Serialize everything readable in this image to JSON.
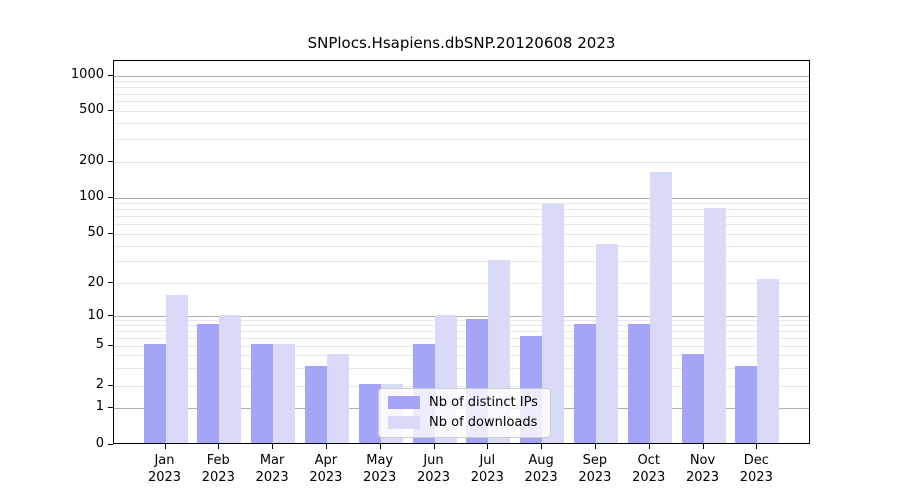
{
  "chart_data": {
    "type": "bar",
    "title": "SNPlocs.Hsapiens.dbSNP.20120608 2023",
    "categories": [
      "Jan",
      "Feb",
      "Mar",
      "Apr",
      "May",
      "Jun",
      "Jul",
      "Aug",
      "Sep",
      "Oct",
      "Nov",
      "Dec"
    ],
    "category_year": "2023",
    "series": [
      {
        "name": "Nb of distinct IPs",
        "color": "#a5a5f8",
        "values": [
          5,
          8,
          5,
          3,
          2,
          5,
          9,
          6,
          8,
          8,
          4,
          3
        ]
      },
      {
        "name": "Nb of downloads",
        "color": "#d9d9f8",
        "values": [
          15,
          10,
          5,
          4,
          2,
          10,
          30,
          85,
          40,
          160,
          80,
          21
        ]
      }
    ],
    "y_ticks": [
      0,
      1,
      2,
      5,
      10,
      20,
      50,
      100,
      200,
      500,
      1000
    ],
    "y_tick_labels": [
      "0",
      "1",
      "2",
      "5",
      "10",
      "20",
      "50",
      "100",
      "200",
      "500",
      "1000"
    ],
    "y_scale": "log-like with zero baseline",
    "ylim": [
      0,
      1000
    ],
    "grid": true,
    "legend_position": "inside lower-center"
  },
  "colors": {
    "background": "#ffffff",
    "axis": "#000000",
    "major_grid": "#b0b0b0",
    "minor_grid": "#e7e7e7",
    "bar_distinct_ips": "#a5a5f8",
    "bar_downloads": "#d9d9f8"
  }
}
